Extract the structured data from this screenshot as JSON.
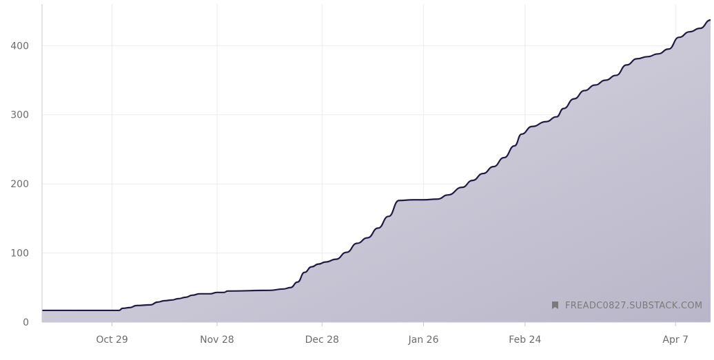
{
  "colors": {
    "line": "#1f1a45",
    "fill_top": "#b9b6c9",
    "fill_bottom": "#dddbe6",
    "grid": "#ececf0",
    "axis": "#c8c8d0",
    "text": "#6b6b6b"
  },
  "watermark": {
    "icon": "bookmark-icon",
    "text": "FREADC0827.SUBSTACK.COM"
  },
  "chart_data": {
    "type": "area",
    "title": "",
    "xlabel": "",
    "ylabel": "",
    "ylim": [
      0,
      460
    ],
    "xlim": [
      "2023-10-09",
      "2024-04-17"
    ],
    "grid": true,
    "y_ticks": [
      0,
      100,
      200,
      300,
      400
    ],
    "x_ticks": [
      {
        "date": "2023-10-29",
        "label": "Oct 29"
      },
      {
        "date": "2023-11-28",
        "label": "Nov 28"
      },
      {
        "date": "2023-12-28",
        "label": "Dec 28"
      },
      {
        "date": "2024-01-26",
        "label": "Jan 26"
      },
      {
        "date": "2024-02-24",
        "label": "Feb 24"
      },
      {
        "date": "2024-04-07",
        "label": "Apr 7"
      }
    ],
    "series": [
      {
        "points": [
          [
            "2023-10-09",
            17
          ],
          [
            "2023-10-31",
            17
          ],
          [
            "2023-11-01",
            20
          ],
          [
            "2023-11-03",
            21
          ],
          [
            "2023-11-05",
            24
          ],
          [
            "2023-11-09",
            25
          ],
          [
            "2023-11-11",
            29
          ],
          [
            "2023-11-13",
            31
          ],
          [
            "2023-11-15",
            32
          ],
          [
            "2023-11-17",
            34
          ],
          [
            "2023-11-19",
            36
          ],
          [
            "2023-11-21",
            39
          ],
          [
            "2023-11-23",
            41
          ],
          [
            "2023-11-26",
            41
          ],
          [
            "2023-11-28",
            43
          ],
          [
            "2023-11-30",
            43
          ],
          [
            "2023-12-01",
            45
          ],
          [
            "2023-12-13",
            46
          ],
          [
            "2023-12-17",
            48
          ],
          [
            "2023-12-19",
            50
          ],
          [
            "2023-12-21",
            58
          ],
          [
            "2023-12-23",
            72
          ],
          [
            "2023-12-25",
            80
          ],
          [
            "2023-12-27",
            84
          ],
          [
            "2023-12-29",
            87
          ],
          [
            "2024-01-01",
            91
          ],
          [
            "2024-01-04",
            101
          ],
          [
            "2024-01-07",
            114
          ],
          [
            "2024-01-10",
            122
          ],
          [
            "2024-01-13",
            136
          ],
          [
            "2024-01-16",
            153
          ],
          [
            "2024-01-19",
            176
          ],
          [
            "2024-01-23",
            177
          ],
          [
            "2024-01-26",
            177
          ],
          [
            "2024-01-30",
            178
          ],
          [
            "2024-02-02",
            184
          ],
          [
            "2024-02-06",
            195
          ],
          [
            "2024-02-09",
            205
          ],
          [
            "2024-02-12",
            215
          ],
          [
            "2024-02-15",
            225
          ],
          [
            "2024-02-18",
            238
          ],
          [
            "2024-02-21",
            255
          ],
          [
            "2024-02-23",
            272
          ],
          [
            "2024-02-26",
            283
          ],
          [
            "2024-03-01",
            290
          ],
          [
            "2024-03-04",
            297
          ],
          [
            "2024-03-06",
            309
          ],
          [
            "2024-03-09",
            323
          ],
          [
            "2024-03-12",
            335
          ],
          [
            "2024-03-15",
            343
          ],
          [
            "2024-03-18",
            350
          ],
          [
            "2024-03-21",
            357
          ],
          [
            "2024-03-24",
            372
          ],
          [
            "2024-03-27",
            381
          ],
          [
            "2024-03-30",
            384
          ],
          [
            "2024-04-02",
            388
          ],
          [
            "2024-04-05",
            395
          ],
          [
            "2024-04-08",
            412
          ],
          [
            "2024-04-11",
            420
          ],
          [
            "2024-04-14",
            425
          ],
          [
            "2024-04-17",
            437
          ]
        ]
      }
    ]
  }
}
